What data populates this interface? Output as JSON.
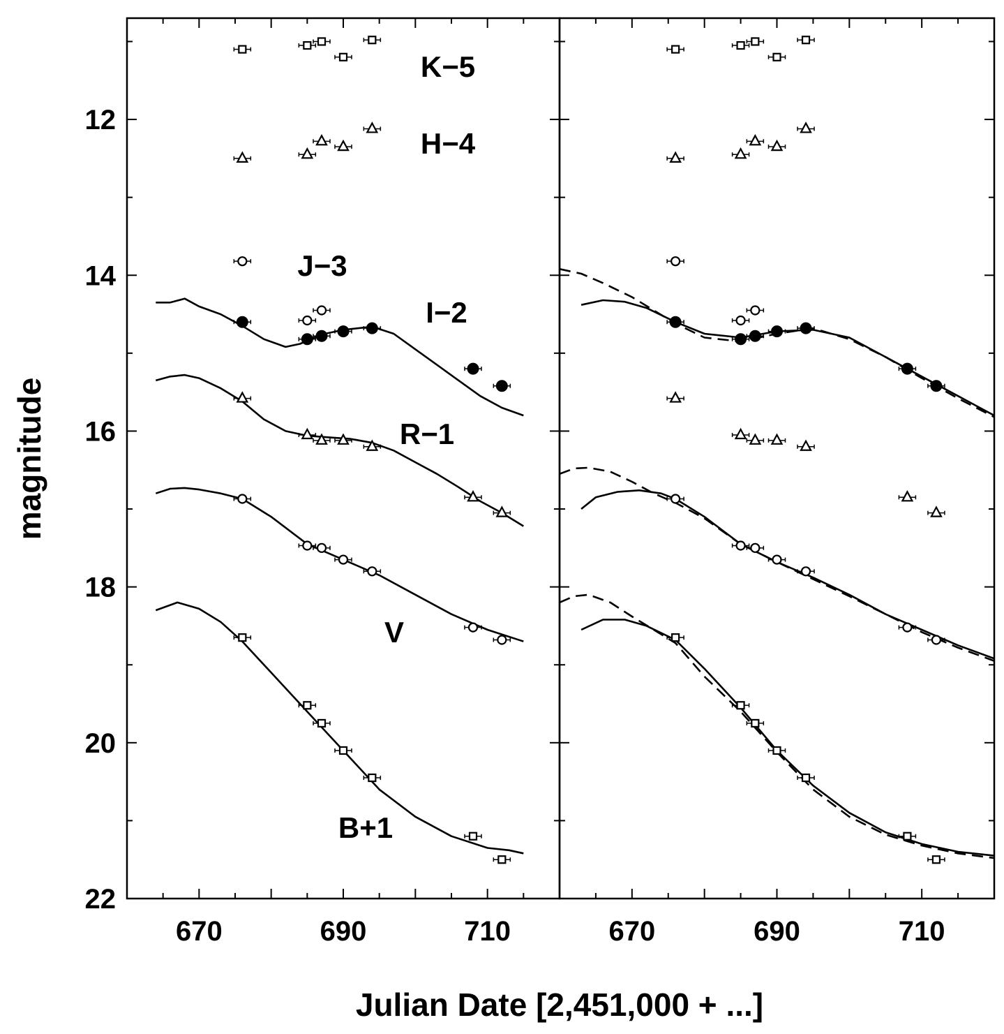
{
  "chart_data": {
    "type": "scatter",
    "xlabel": "Julian Date [2,451,000 + ...]",
    "ylabel": "magnitude",
    "xlim": [
      660,
      720
    ],
    "ylim": [
      22,
      10.7
    ],
    "y_inverted": true,
    "xticks": [
      670,
      690,
      710
    ],
    "yticks": [
      12,
      14,
      16,
      18,
      20,
      22
    ],
    "panels": [
      {
        "name": "left",
        "series": [
          {
            "name": "K-5",
            "label": "K−5",
            "marker": "square",
            "x": [
              676,
              685,
              687,
              690,
              694
            ],
            "y": [
              11.1,
              11.05,
              11.0,
              11.2,
              10.98
            ]
          },
          {
            "name": "H-4",
            "label": "H−4",
            "marker": "triangle",
            "x": [
              676,
              685,
              687,
              690,
              694
            ],
            "y": [
              12.5,
              12.45,
              12.28,
              12.35,
              12.12
            ]
          },
          {
            "name": "J-3",
            "label": "J−3",
            "marker": "circle-open",
            "x": [
              676,
              685,
              687
            ],
            "y": [
              13.82,
              14.58,
              14.45
            ]
          },
          {
            "name": "I-2",
            "label": "I−2",
            "marker": "circle-filled",
            "x": [
              676,
              685,
              687,
              690,
              694,
              708,
              712
            ],
            "y": [
              14.6,
              14.82,
              14.78,
              14.72,
              14.68,
              15.2,
              15.42
            ]
          },
          {
            "name": "R-1",
            "label": "R−1",
            "marker": "triangle",
            "x": [
              676,
              685,
              687,
              690,
              694,
              708,
              712
            ],
            "y": [
              15.58,
              16.05,
              16.12,
              16.12,
              16.2,
              16.85,
              17.05
            ]
          },
          {
            "name": "V",
            "label": "V",
            "marker": "circle-open",
            "x": [
              676,
              685,
              687,
              690,
              694,
              708,
              712
            ],
            "y": [
              16.87,
              17.47,
              17.5,
              17.65,
              17.8,
              18.52,
              18.68
            ]
          },
          {
            "name": "B+1",
            "label": "B+1",
            "marker": "square",
            "x": [
              676,
              685,
              687,
              690,
              694,
              708,
              712
            ],
            "y": [
              18.65,
              19.52,
              19.75,
              20.1,
              20.45,
              21.2,
              21.5
            ]
          }
        ],
        "curves": [
          {
            "name": "I-2 model",
            "style": "solid",
            "x": [
              664,
              666,
              668,
              670,
              673,
              676,
              679,
              682,
              684,
              687,
              690,
              694,
              697,
              700,
              703,
              706,
              709,
              712,
              715
            ],
            "y": [
              14.35,
              14.35,
              14.3,
              14.4,
              14.5,
              14.65,
              14.82,
              14.92,
              14.88,
              14.76,
              14.7,
              14.66,
              14.75,
              14.95,
              15.15,
              15.35,
              15.55,
              15.7,
              15.8
            ]
          },
          {
            "name": "R-1 model",
            "style": "solid",
            "x": [
              664,
              666,
              668,
              670,
              673,
              676,
              679,
              682,
              685,
              688,
              691,
              694,
              697,
              700,
              703,
              706,
              709,
              712,
              715
            ],
            "y": [
              15.35,
              15.3,
              15.28,
              15.32,
              15.45,
              15.62,
              15.85,
              16.0,
              16.06,
              16.08,
              16.1,
              16.15,
              16.25,
              16.4,
              16.55,
              16.72,
              16.9,
              17.05,
              17.22
            ]
          },
          {
            "name": "V model",
            "style": "solid",
            "x": [
              664,
              666,
              668,
              670,
              673,
              676,
              680,
              685,
              690,
              695,
              700,
              705,
              710,
              715
            ],
            "y": [
              16.8,
              16.74,
              16.73,
              16.75,
              16.8,
              16.87,
              17.1,
              17.45,
              17.65,
              17.85,
              18.1,
              18.35,
              18.55,
              18.7
            ]
          },
          {
            "name": "B+1 model",
            "style": "solid",
            "x": [
              664,
              667,
              670,
              673,
              676,
              680,
              685,
              690,
              695,
              700,
              705,
              710,
              713,
              715
            ],
            "y": [
              18.3,
              18.2,
              18.28,
              18.45,
              18.7,
              19.1,
              19.6,
              20.1,
              20.6,
              20.95,
              21.2,
              21.35,
              21.38,
              21.42
            ]
          }
        ]
      },
      {
        "name": "right",
        "series": [
          {
            "name": "K-5",
            "marker": "square",
            "x": [
              676,
              685,
              687,
              690,
              694
            ],
            "y": [
              11.1,
              11.05,
              11.0,
              11.2,
              10.98
            ]
          },
          {
            "name": "H-4",
            "marker": "triangle",
            "x": [
              676,
              685,
              687,
              690,
              694
            ],
            "y": [
              12.5,
              12.45,
              12.28,
              12.35,
              12.12
            ]
          },
          {
            "name": "J-3",
            "marker": "circle-open",
            "x": [
              676,
              685,
              687
            ],
            "y": [
              13.82,
              14.58,
              14.45
            ]
          },
          {
            "name": "I-2",
            "marker": "circle-filled",
            "x": [
              676,
              685,
              687,
              690,
              694,
              708,
              712
            ],
            "y": [
              14.6,
              14.82,
              14.78,
              14.72,
              14.68,
              15.2,
              15.42
            ]
          },
          {
            "name": "R-1",
            "marker": "triangle",
            "x": [
              676,
              685,
              687,
              690,
              694,
              708,
              712
            ],
            "y": [
              15.58,
              16.05,
              16.12,
              16.12,
              16.2,
              16.85,
              17.05
            ]
          },
          {
            "name": "V",
            "marker": "circle-open",
            "x": [
              676,
              685,
              687,
              690,
              694,
              708,
              712
            ],
            "y": [
              16.87,
              17.47,
              17.5,
              17.65,
              17.8,
              18.52,
              18.68
            ]
          },
          {
            "name": "B+1",
            "marker": "square",
            "x": [
              676,
              685,
              687,
              690,
              694,
              708,
              712
            ],
            "y": [
              18.65,
              19.52,
              19.75,
              20.1,
              20.45,
              21.2,
              21.5
            ]
          }
        ],
        "curves": [
          {
            "name": "I-2 model",
            "style": "solid",
            "x": [
              663,
              666,
              669,
              672,
              676,
              680,
              685,
              690,
              695,
              700,
              705,
              710,
              715,
              720
            ],
            "y": [
              14.38,
              14.32,
              14.34,
              14.42,
              14.6,
              14.75,
              14.8,
              14.72,
              14.7,
              14.8,
              15.05,
              15.3,
              15.55,
              15.8
            ]
          },
          {
            "name": "I-2 model (dashed)",
            "style": "dashed",
            "x": [
              660,
              663,
              666,
              670,
              673,
              676,
              680,
              685,
              690,
              695,
              700,
              705,
              710,
              715,
              720
            ],
            "y": [
              13.92,
              13.98,
              14.1,
              14.28,
              14.45,
              14.62,
              14.8,
              14.85,
              14.75,
              14.68,
              14.82,
              15.05,
              15.32,
              15.58,
              15.82
            ]
          },
          {
            "name": "V model",
            "style": "solid",
            "x": [
              663,
              665,
              668,
              671,
              674,
              676,
              680,
              685,
              690,
              695,
              700,
              705,
              710,
              715,
              720
            ],
            "y": [
              17.0,
              16.85,
              16.78,
              16.76,
              16.8,
              16.87,
              17.1,
              17.45,
              17.68,
              17.88,
              18.1,
              18.35,
              18.55,
              18.75,
              18.92
            ]
          },
          {
            "name": "V model (dashed)",
            "style": "dashed",
            "x": [
              660,
              662,
              664,
              667,
              670,
              673,
              676,
              680,
              685,
              690,
              695,
              700,
              705,
              710,
              715,
              720
            ],
            "y": [
              16.55,
              16.48,
              16.47,
              16.52,
              16.65,
              16.8,
              16.92,
              17.12,
              17.45,
              17.68,
              17.9,
              18.12,
              18.35,
              18.58,
              18.78,
              18.95
            ]
          },
          {
            "name": "B+1 model",
            "style": "solid",
            "x": [
              663,
              666,
              669,
              672,
              676,
              680,
              685,
              690,
              695,
              700,
              705,
              710,
              715,
              720
            ],
            "y": [
              18.55,
              18.42,
              18.42,
              18.5,
              18.68,
              19.05,
              19.55,
              20.1,
              20.55,
              20.9,
              21.15,
              21.3,
              21.4,
              21.45
            ]
          },
          {
            "name": "B+1 model (dashed)",
            "style": "dashed",
            "x": [
              660,
              662,
              664,
              667,
              670,
              673,
              676,
              680,
              685,
              690,
              695,
              700,
              705,
              710,
              715,
              720
            ],
            "y": [
              18.2,
              18.12,
              18.1,
              18.2,
              18.38,
              18.55,
              18.72,
              19.15,
              19.6,
              20.12,
              20.6,
              20.95,
              21.18,
              21.32,
              21.42,
              21.48
            ]
          }
        ]
      }
    ]
  }
}
